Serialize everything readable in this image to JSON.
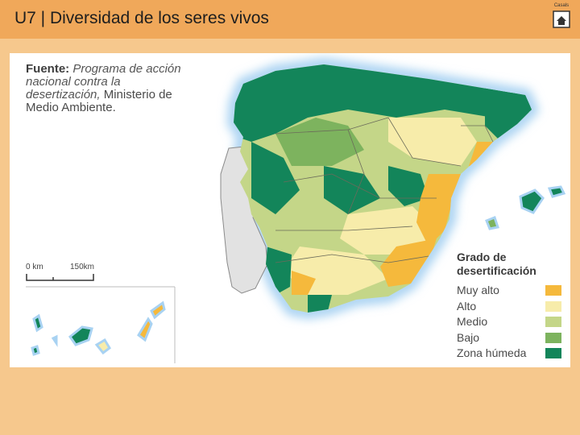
{
  "header": {
    "title": "U7 | Diversidad de los seres vivos",
    "logo_text": "Casals"
  },
  "map": {
    "source_label": "Fuente:",
    "source_text": "Programa de acción nacional contra la desertización,",
    "source_org": "Ministerio de Medio Ambiente.",
    "scale": {
      "start": "0 km",
      "end": "150km"
    },
    "legend": {
      "title": "Grado de desertificación",
      "items": [
        {
          "label": "Muy alto",
          "color": "#f5b93c"
        },
        {
          "label": "Alto",
          "color": "#f7ecaa"
        },
        {
          "label": "Medio",
          "color": "#c4d688"
        },
        {
          "label": "Bajo",
          "color": "#7db35e"
        },
        {
          "label": "Zona húmeda",
          "color": "#13855a"
        }
      ]
    }
  }
}
